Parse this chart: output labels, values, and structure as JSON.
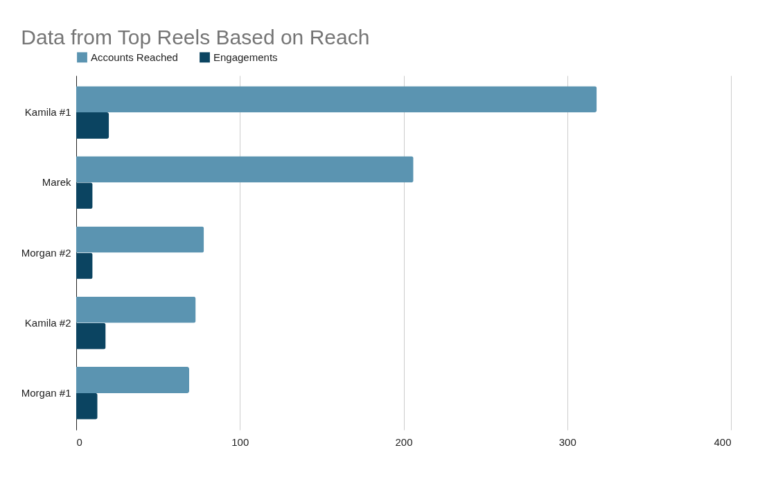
{
  "chart_data": {
    "type": "bar",
    "orientation": "horizontal",
    "title": "Data from Top Reels Based on Reach",
    "categories": [
      "Kamila #1",
      "Marek",
      "Morgan #2",
      "Kamila #2",
      "Morgan #1"
    ],
    "series": [
      {
        "name": "Accounts Reached",
        "color": "#5b94b1",
        "values": [
          318,
          206,
          78,
          73,
          69
        ]
      },
      {
        "name": "Engagements",
        "color": "#0b4461",
        "values": [
          20,
          10,
          10,
          18,
          13
        ]
      }
    ],
    "xlim": [
      0,
      400
    ],
    "xticks": [
      0,
      100,
      200,
      300,
      400
    ],
    "grid": "x",
    "legend": "top"
  }
}
